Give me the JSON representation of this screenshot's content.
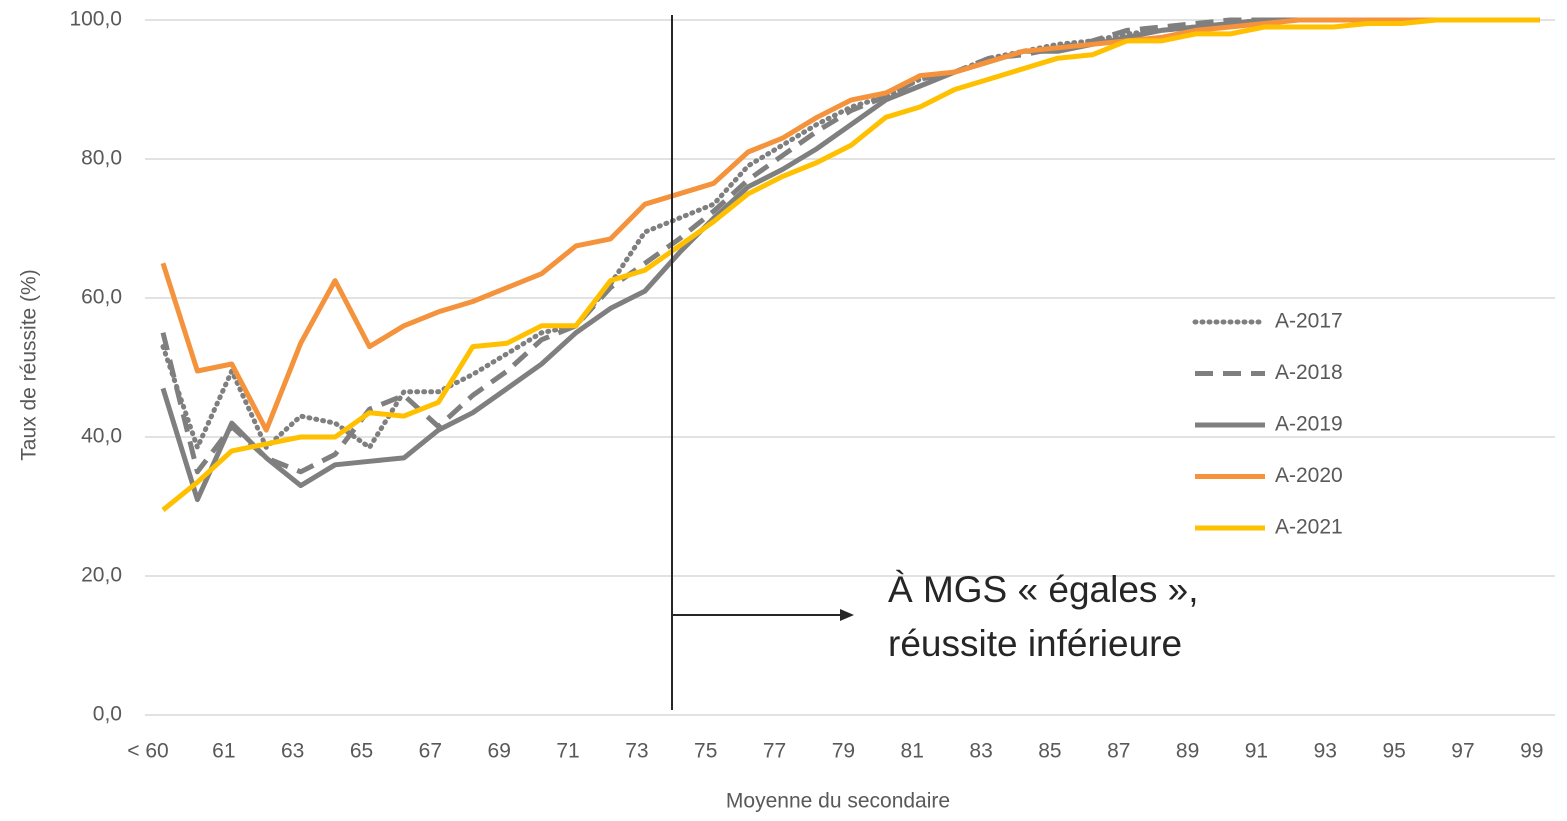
{
  "chart_data": {
    "type": "line",
    "xlabel": "Moyenne du secondaire",
    "ylabel": "Taux de réussite (%)",
    "annotation": [
      "À MGS « égales »,",
      "réussite inférieure"
    ],
    "categories": [
      "< 60",
      null,
      "61",
      null,
      "63",
      null,
      "65",
      null,
      "67",
      null,
      "69",
      null,
      "71",
      null,
      "73",
      null,
      "75",
      null,
      "77",
      null,
      "79",
      null,
      "81",
      null,
      "83",
      null,
      "85",
      null,
      "87",
      null,
      "89",
      null,
      "91",
      null,
      "93",
      null,
      "95",
      null,
      "97",
      null,
      "99"
    ],
    "ylim": [
      0,
      100
    ],
    "yticks": [
      {
        "value": 0,
        "label": "0,0"
      },
      {
        "value": 20,
        "label": "20,0"
      },
      {
        "value": 40,
        "label": "40,0"
      },
      {
        "value": 60,
        "label": "60,0"
      },
      {
        "value": 80,
        "label": "80,0"
      },
      {
        "value": 100,
        "label": "100,0"
      }
    ],
    "grid": true,
    "legend": "right",
    "series": [
      {
        "name": "A-2017",
        "color": "#7f7f7f",
        "dash": "dotted",
        "values": [
          53,
          38.5,
          49.5,
          38.5,
          43,
          42,
          38.5,
          46.5,
          46.5,
          49,
          52,
          55,
          56,
          62,
          69.5,
          71.5,
          73.5,
          79,
          82,
          85,
          87.5,
          89,
          91.5,
          92.5,
          94.5,
          95.5,
          96.5,
          97,
          98,
          98.5,
          99,
          99.5,
          100,
          100,
          100,
          100,
          100,
          100,
          100,
          100,
          100
        ]
      },
      {
        "name": "A-2018",
        "color": "#7f7f7f",
        "dash": "dashed",
        "values": [
          55,
          35,
          41.5,
          37,
          35,
          37.5,
          44,
          46,
          41.5,
          46,
          49.5,
          54,
          56,
          61.5,
          65,
          68.5,
          72.5,
          77,
          80.5,
          84,
          87,
          89,
          91.5,
          92.5,
          94.5,
          95,
          96,
          97,
          98.5,
          99,
          99.5,
          100,
          100,
          100,
          100,
          100,
          100,
          100,
          100,
          100,
          100
        ]
      },
      {
        "name": "A-2019",
        "color": "#7f7f7f",
        "dash": "solid",
        "values": [
          47,
          31,
          42,
          37,
          33,
          36,
          36.5,
          37,
          41,
          43.5,
          47,
          50.5,
          55,
          58.5,
          61,
          66.5,
          71.5,
          76,
          78.5,
          81.5,
          85,
          88.5,
          90.5,
          92.5,
          94,
          95.5,
          95.5,
          96.5,
          97.5,
          98.5,
          99,
          99.5,
          100,
          100,
          100,
          100,
          100,
          100,
          100,
          100,
          100
        ]
      },
      {
        "name": "A-2020",
        "color": "#f4933c",
        "dash": "solid",
        "values": [
          65,
          49.5,
          50.5,
          41,
          53.5,
          62.5,
          53,
          56,
          58,
          59.5,
          61.5,
          63.5,
          67.5,
          68.5,
          73.5,
          75,
          76.5,
          81,
          83,
          86,
          88.5,
          89.5,
          92,
          92.5,
          94,
          95.5,
          96,
          96.5,
          97,
          97.5,
          98.5,
          99,
          99.5,
          100,
          100,
          100,
          100,
          100,
          100,
          100,
          100
        ]
      },
      {
        "name": "A-2021",
        "color": "#ffc000",
        "dash": "solid",
        "values": [
          29.5,
          33.5,
          38,
          39,
          40,
          40,
          43.5,
          43,
          45,
          53,
          53.5,
          56,
          56,
          62.5,
          64,
          67.5,
          71,
          75,
          77.5,
          79.5,
          82,
          86,
          87.5,
          90,
          91.5,
          93,
          94.5,
          95,
          97,
          97,
          98,
          98,
          99,
          99,
          99,
          99.5,
          99.5,
          100,
          100,
          100,
          100
        ]
      }
    ]
  }
}
